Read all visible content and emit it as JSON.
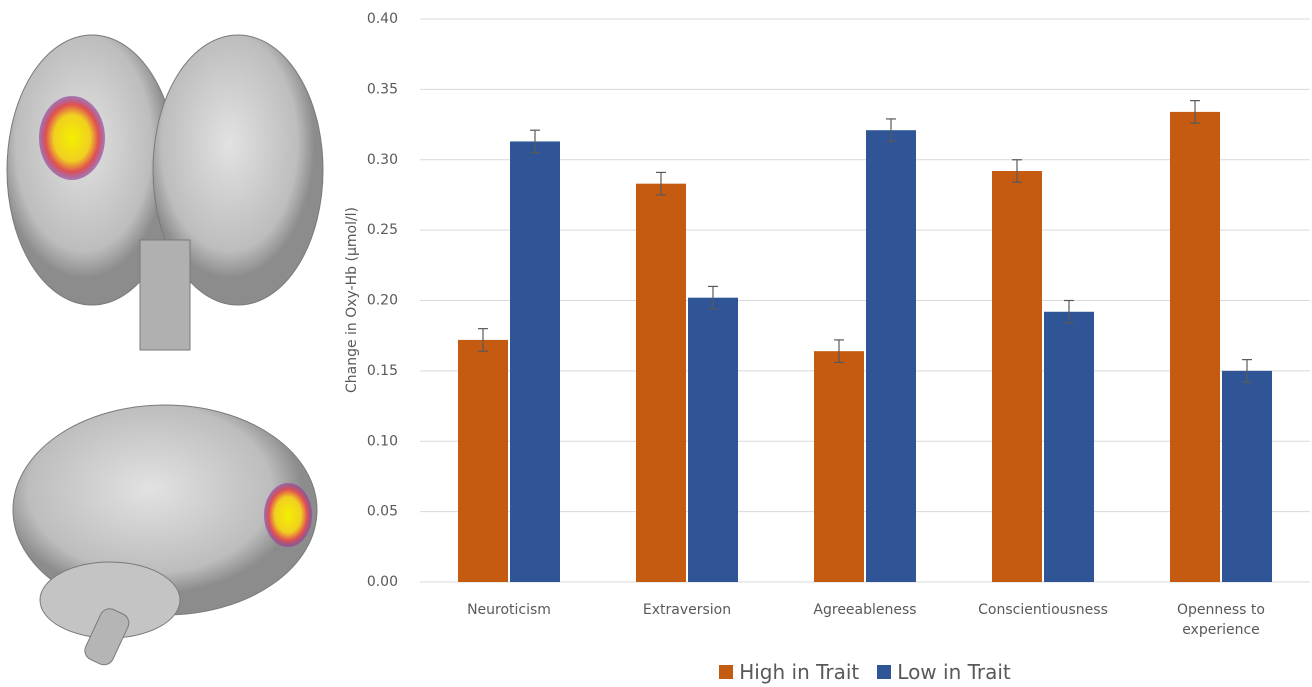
{
  "chart_data": {
    "type": "bar",
    "y_label": "Change in Oxy-Hb (µmol/l)",
    "categories": [
      "Neuroticism",
      "Extraversion",
      "Agreeableness",
      "Conscientiousness",
      "Openness to experience"
    ],
    "series": [
      {
        "name": "High in Trait",
        "color": "#c55a11",
        "values": [
          0.172,
          0.283,
          0.164,
          0.292,
          0.334
        ],
        "errors": [
          0.008,
          0.008,
          0.008,
          0.008,
          0.008
        ]
      },
      {
        "name": "Low in Trait",
        "color": "#2f5597",
        "values": [
          0.313,
          0.202,
          0.321,
          0.192,
          0.15
        ],
        "errors": [
          0.008,
          0.008,
          0.008,
          0.008,
          0.008
        ]
      }
    ],
    "ylim": [
      0,
      0.4
    ],
    "yticks": [
      {
        "value": 0,
        "label": "0.00"
      },
      {
        "value": 0.05,
        "label": "0.05"
      },
      {
        "value": 0.1,
        "label": "0.10"
      },
      {
        "value": 0.15,
        "label": "0.15"
      },
      {
        "value": 0.2,
        "label": "0.20"
      },
      {
        "value": 0.25,
        "label": "0.25"
      },
      {
        "value": 0.3,
        "label": "0.30"
      },
      {
        "value": 0.35,
        "label": "0.35"
      },
      {
        "value": 0.4,
        "label": "0.40"
      }
    ],
    "grid": true,
    "legend": "bottom"
  }
}
